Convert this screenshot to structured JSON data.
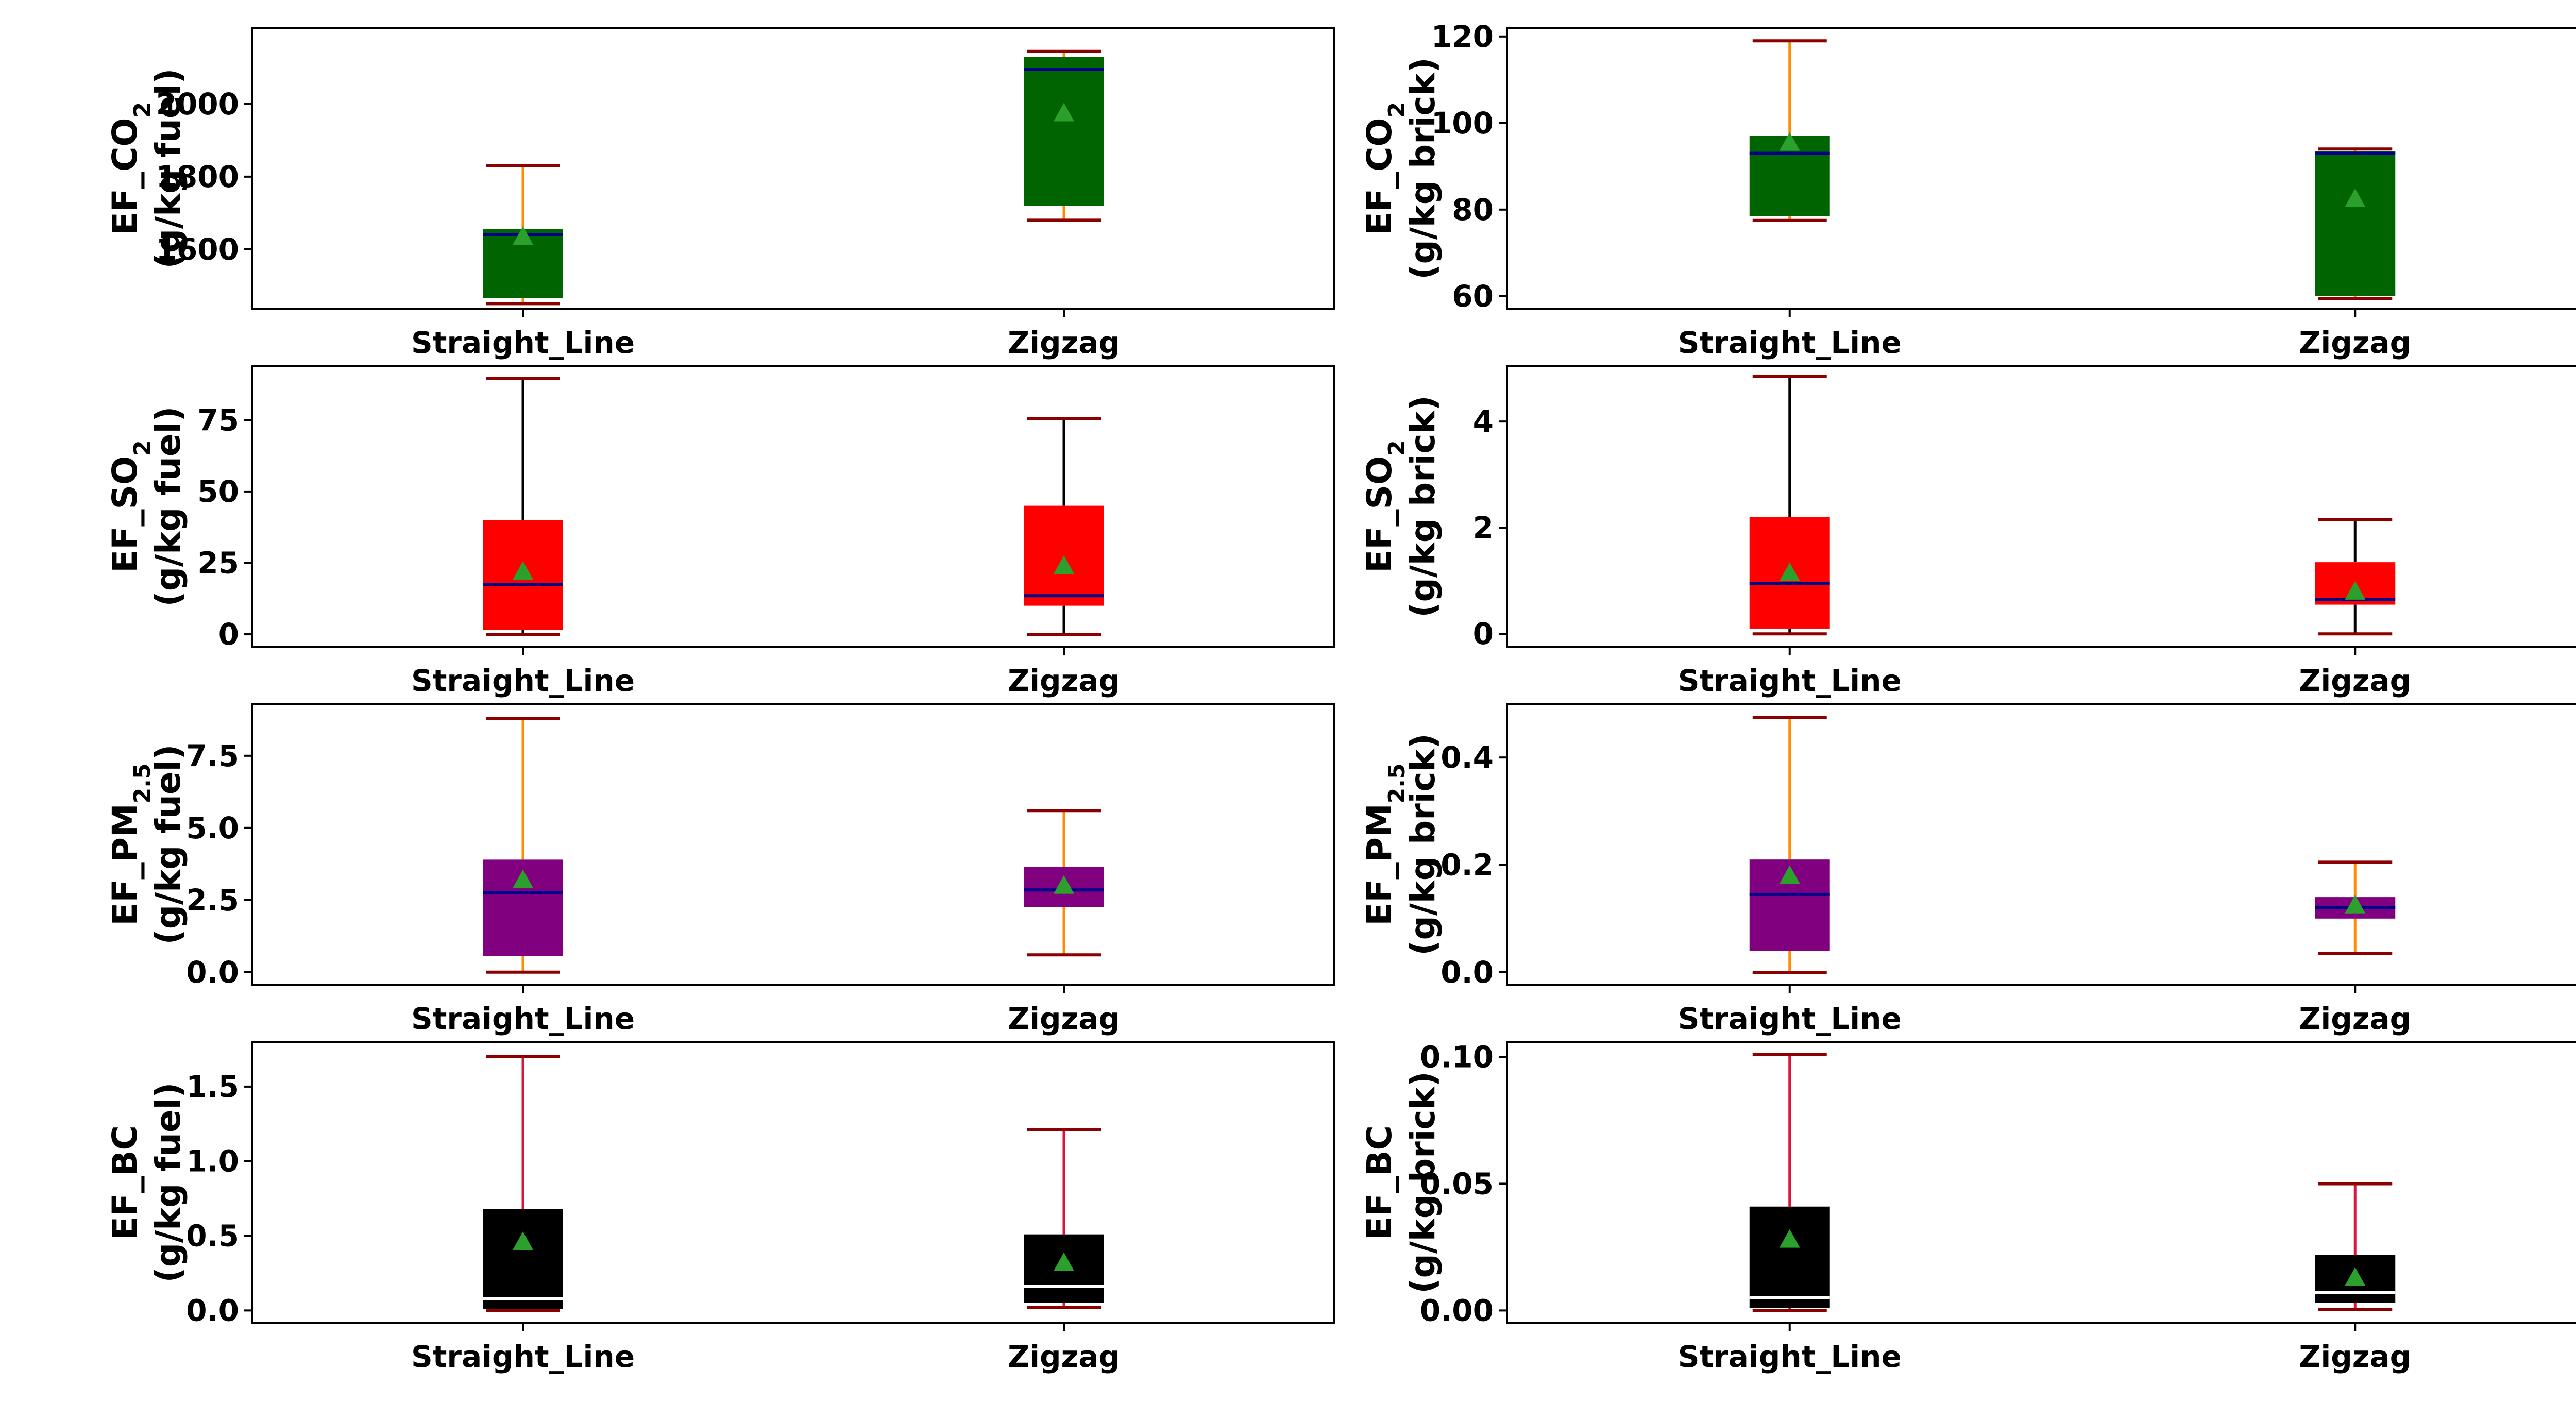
{
  "chart_data": [
    {
      "type": "box",
      "ylabel": {
        "line1_prefix": "EF_CO",
        "sub": "2",
        "line1_suffix": "",
        "line2": "(g/kg fuel)"
      },
      "categories": [
        "Straight_Line",
        "Zigzag"
      ],
      "ylim": [
        1435,
        2210
      ],
      "yticks": [
        "1600",
        "1800",
        "2000"
      ],
      "box_color": "#006400",
      "whisker_color": "#FF8C00",
      "cap_color": "#8B0000",
      "median_color": "#00008B",
      "boxes": [
        {
          "min": 1450,
          "q1": 1465,
          "median": 1640,
          "q3": 1655,
          "max": 1830,
          "mean": 1635
        },
        {
          "min": 1680,
          "q1": 1720,
          "median": 2095,
          "q3": 2130,
          "max": 2145,
          "mean": 1975
        }
      ]
    },
    {
      "type": "box",
      "ylabel": {
        "line1_prefix": "EF_CO",
        "sub": "2",
        "line1_suffix": "",
        "line2": "(g/kg brick)"
      },
      "categories": [
        "Straight_Line",
        "Zigzag"
      ],
      "ylim": [
        57,
        122
      ],
      "yticks": [
        "60",
        "80",
        "100",
        "120"
      ],
      "box_color": "#006400",
      "whisker_color": "#FF8C00",
      "cap_color": "#8B0000",
      "median_color": "#00008B",
      "boxes": [
        {
          "min": 77.5,
          "q1": 78.5,
          "median": 93,
          "q3": 97,
          "max": 119,
          "mean": 95.5
        },
        {
          "min": 59.5,
          "q1": 60,
          "median": 93,
          "q3": 93.5,
          "max": 94,
          "mean": 82.5
        }
      ]
    },
    {
      "type": "box",
      "ylabel": {
        "line1_prefix": "EF_SO",
        "sub": "2",
        "line1_suffix": "",
        "line2": "(g/kg fuel)"
      },
      "categories": [
        "Straight_Line",
        "Zigzag"
      ],
      "ylim": [
        -4.5,
        94
      ],
      "yticks": [
        "0",
        "25",
        "50",
        "75"
      ],
      "box_color": "#FF0000",
      "whisker_color": "#000000",
      "cap_color": "#8B0000",
      "median_color": "#00008B",
      "boxes": [
        {
          "min": 0,
          "q1": 1.5,
          "median": 17.5,
          "q3": 40,
          "max": 89.5,
          "mean": 22
        },
        {
          "min": 0,
          "q1": 10,
          "median": 13.5,
          "q3": 45,
          "max": 75.5,
          "mean": 24
        }
      ]
    },
    {
      "type": "box",
      "ylabel": {
        "line1_prefix": "EF_SO",
        "sub": "2",
        "line1_suffix": "",
        "line2": "(g/kg brick)"
      },
      "categories": [
        "Straight_Line",
        "Zigzag"
      ],
      "ylim": [
        -0.25,
        5.05
      ],
      "yticks": [
        "0",
        "2",
        "4"
      ],
      "box_color": "#FF0000",
      "whisker_color": "#000000",
      "cap_color": "#8B0000",
      "median_color": "#00008B",
      "boxes": [
        {
          "min": 0,
          "q1": 0.1,
          "median": 0.95,
          "q3": 2.2,
          "max": 4.85,
          "mean": 1.15
        },
        {
          "min": 0,
          "q1": 0.55,
          "median": 0.65,
          "q3": 1.35,
          "max": 2.15,
          "mean": 0.8
        }
      ]
    },
    {
      "type": "box",
      "ylabel": {
        "line1_prefix": "EF_PM",
        "sub": "2.5",
        "line1_suffix": "",
        "line2": "(g/kg fuel)"
      },
      "categories": [
        "Straight_Line",
        "Zigzag"
      ],
      "ylim": [
        -0.45,
        9.3
      ],
      "yticks": [
        "0.0",
        "2.5",
        "5.0",
        "7.5"
      ],
      "box_color": "#800080",
      "whisker_color": "#FF8C00",
      "cap_color": "#8B0000",
      "median_color": "#00008B",
      "boxes": [
        {
          "min": 0,
          "q1": 0.55,
          "median": 2.75,
          "q3": 3.9,
          "max": 8.8,
          "mean": 3.2
        },
        {
          "min": 0.6,
          "q1": 2.25,
          "median": 2.85,
          "q3": 3.65,
          "max": 5.6,
          "mean": 3.0
        }
      ]
    },
    {
      "type": "box",
      "ylabel": {
        "line1_prefix": "EF_PM",
        "sub": "2.5",
        "line1_suffix": "",
        "line2": "(g/kg brick)"
      },
      "categories": [
        "Straight_Line",
        "Zigzag"
      ],
      "ylim": [
        -0.024,
        0.5
      ],
      "yticks": [
        "0.0",
        "0.2",
        "0.4"
      ],
      "box_color": "#800080",
      "whisker_color": "#FF8C00",
      "cap_color": "#8B0000",
      "median_color": "#00008B",
      "boxes": [
        {
          "min": 0,
          "q1": 0.04,
          "median": 0.145,
          "q3": 0.21,
          "max": 0.475,
          "mean": 0.18
        },
        {
          "min": 0.035,
          "q1": 0.1,
          "median": 0.12,
          "q3": 0.14,
          "max": 0.205,
          "mean": 0.125
        }
      ]
    },
    {
      "type": "box",
      "ylabel": {
        "line1_prefix": "EF_BC",
        "sub": "",
        "line1_suffix": "",
        "line2": "(g/kg fuel)"
      },
      "categories": [
        "Straight_Line",
        "Zigzag"
      ],
      "ylim": [
        -0.085,
        1.8
      ],
      "yticks": [
        "0.0",
        "0.5",
        "1.0",
        "1.5"
      ],
      "box_color": "#000000",
      "whisker_color": "#DC143C",
      "cap_color": "#8B0000",
      "median_color": "#FFFFFF",
      "boxes": [
        {
          "min": 0,
          "q1": 0.01,
          "median": 0.08,
          "q3": 0.68,
          "max": 1.7,
          "mean": 0.46
        },
        {
          "min": 0.02,
          "q1": 0.05,
          "median": 0.16,
          "q3": 0.51,
          "max": 1.21,
          "mean": 0.32
        }
      ]
    },
    {
      "type": "box",
      "ylabel": {
        "line1_prefix": "EF_BC",
        "sub": "",
        "line1_suffix": "",
        "line2": "(g/kg brick)"
      },
      "categories": [
        "Straight_Line",
        "Zigzag"
      ],
      "ylim": [
        -0.005,
        0.106
      ],
      "yticks": [
        "0.00",
        "0.05",
        "0.10"
      ],
      "box_color": "#000000",
      "whisker_color": "#DC143C",
      "cap_color": "#8B0000",
      "median_color": "#FFFFFF",
      "boxes": [
        {
          "min": 0,
          "q1": 0.001,
          "median": 0.005,
          "q3": 0.041,
          "max": 0.101,
          "mean": 0.028
        },
        {
          "min": 0.0005,
          "q1": 0.003,
          "median": 0.007,
          "q3": 0.022,
          "max": 0.05,
          "mean": 0.013
        }
      ]
    }
  ],
  "mean_marker_color": "#2CA02C"
}
